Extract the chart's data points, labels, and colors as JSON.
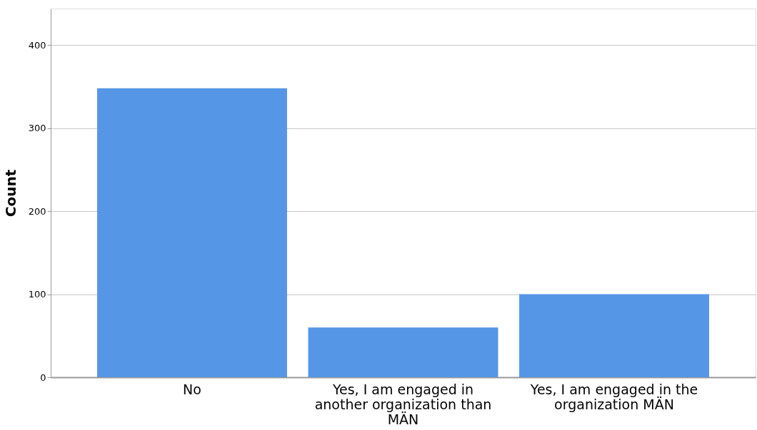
{
  "chart_data": {
    "type": "bar",
    "ylabel": "Count",
    "categories": [
      "No",
      "Yes, I am engaged in another organization than MÄN",
      "Yes, I am engaged in the organization MÄN"
    ],
    "values": [
      348,
      60,
      100
    ],
    "color": "#5597e6",
    "ylim": [
      0,
      444
    ],
    "yticks": [
      0,
      100,
      200,
      300,
      400
    ],
    "grid": "y"
  }
}
